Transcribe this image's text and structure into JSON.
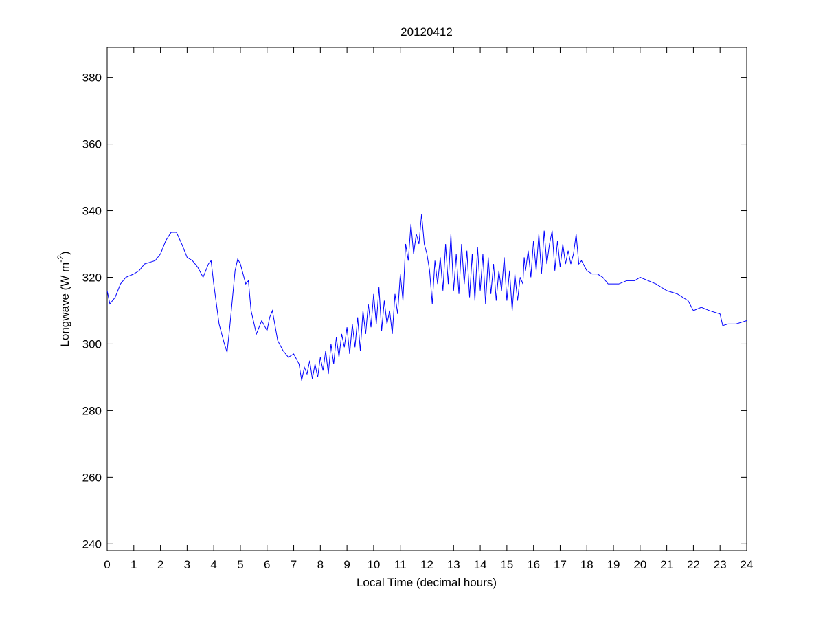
{
  "chart_data": {
    "type": "line",
    "title": "20120412",
    "x_label": "Local Time (decimal hours)",
    "y_label": [
      "Longwave (W m",
      "-2",
      ")"
    ],
    "xlim": [
      0,
      24
    ],
    "ylim": [
      238,
      389
    ],
    "xticks": [
      0,
      1,
      2,
      3,
      4,
      5,
      6,
      7,
      8,
      9,
      10,
      11,
      12,
      13,
      14,
      15,
      16,
      17,
      18,
      19,
      20,
      21,
      22,
      23,
      24
    ],
    "yticks": [
      240,
      260,
      280,
      300,
      320,
      340,
      360,
      380
    ],
    "series": [
      {
        "name": "Longwave",
        "color": "#0000ff",
        "x": [
          0,
          0.1,
          0.3,
          0.5,
          0.7,
          1.0,
          1.2,
          1.4,
          1.6,
          1.8,
          2.0,
          2.2,
          2.4,
          2.6,
          2.8,
          3.0,
          3.2,
          3.4,
          3.6,
          3.8,
          3.9,
          4.0,
          4.2,
          4.4,
          4.5,
          4.6,
          4.8,
          4.9,
          5.0,
          5.2,
          5.3,
          5.4,
          5.6,
          5.8,
          6.0,
          6.1,
          6.2,
          6.4,
          6.6,
          6.8,
          7.0,
          7.2,
          7.3,
          7.4,
          7.5,
          7.6,
          7.7,
          7.8,
          7.9,
          8.0,
          8.1,
          8.2,
          8.3,
          8.4,
          8.5,
          8.6,
          8.7,
          8.8,
          8.9,
          9.0,
          9.1,
          9.2,
          9.3,
          9.4,
          9.5,
          9.6,
          9.7,
          9.8,
          9.9,
          10.0,
          10.1,
          10.2,
          10.3,
          10.4,
          10.5,
          10.6,
          10.7,
          10.8,
          10.9,
          11.0,
          11.1,
          11.2,
          11.3,
          11.4,
          11.5,
          11.6,
          11.7,
          11.8,
          11.9,
          12.0,
          12.1,
          12.2,
          12.3,
          12.4,
          12.5,
          12.6,
          12.7,
          12.8,
          12.9,
          13.0,
          13.1,
          13.2,
          13.3,
          13.4,
          13.5,
          13.6,
          13.7,
          13.8,
          13.9,
          14.0,
          14.1,
          14.2,
          14.3,
          14.4,
          14.5,
          14.6,
          14.7,
          14.8,
          14.9,
          15.0,
          15.1,
          15.2,
          15.3,
          15.4,
          15.5,
          15.6,
          15.65,
          15.7,
          15.8,
          15.9,
          16.0,
          16.1,
          16.2,
          16.3,
          16.4,
          16.5,
          16.6,
          16.7,
          16.8,
          16.9,
          17.0,
          17.1,
          17.2,
          17.3,
          17.4,
          17.5,
          17.6,
          17.7,
          17.8,
          18.0,
          18.2,
          18.4,
          18.6,
          18.8,
          19.0,
          19.2,
          19.5,
          19.8,
          20.0,
          20.3,
          20.6,
          21.0,
          21.4,
          21.8,
          22.0,
          22.3,
          22.6,
          23.0,
          23.1,
          23.3,
          23.6,
          24.0
        ],
        "values": [
          316,
          312,
          314,
          318,
          320,
          321,
          322,
          324,
          324.5,
          325,
          327,
          331,
          333.5,
          333.5,
          330,
          326,
          325,
          323,
          320,
          324,
          325,
          318,
          306,
          300,
          297.5,
          305,
          322,
          325.5,
          324,
          318,
          319,
          310,
          303,
          307,
          304,
          308,
          310,
          301,
          298,
          296,
          297,
          294,
          289,
          293,
          291,
          295,
          289.5,
          294,
          290,
          296,
          292,
          298,
          291,
          300,
          294,
          302,
          296,
          303,
          299,
          305,
          297,
          306,
          299,
          308,
          298,
          310,
          303,
          312,
          305,
          315,
          306,
          317,
          304,
          313,
          306,
          310,
          303,
          315,
          309,
          321,
          313,
          330,
          325,
          336,
          327,
          333,
          330,
          339,
          330,
          327,
          322,
          312,
          325,
          318,
          326,
          316,
          330,
          318,
          333,
          316,
          327,
          315,
          330,
          318,
          328,
          314,
          327,
          313,
          329,
          316,
          327,
          312,
          326,
          315,
          324,
          313,
          322,
          316,
          326,
          313,
          322,
          310,
          321,
          313,
          320,
          318,
          326,
          322,
          328,
          320,
          331,
          322,
          333,
          321,
          334,
          324,
          330,
          334,
          322,
          331,
          323,
          330,
          324,
          328,
          324,
          327,
          333,
          324,
          325,
          322,
          321,
          321,
          320,
          318,
          318,
          318,
          319,
          319,
          320,
          319,
          318,
          316,
          315,
          313,
          310,
          311,
          310,
          309,
          305.5,
          306,
          306,
          307
        ]
      }
    ]
  }
}
